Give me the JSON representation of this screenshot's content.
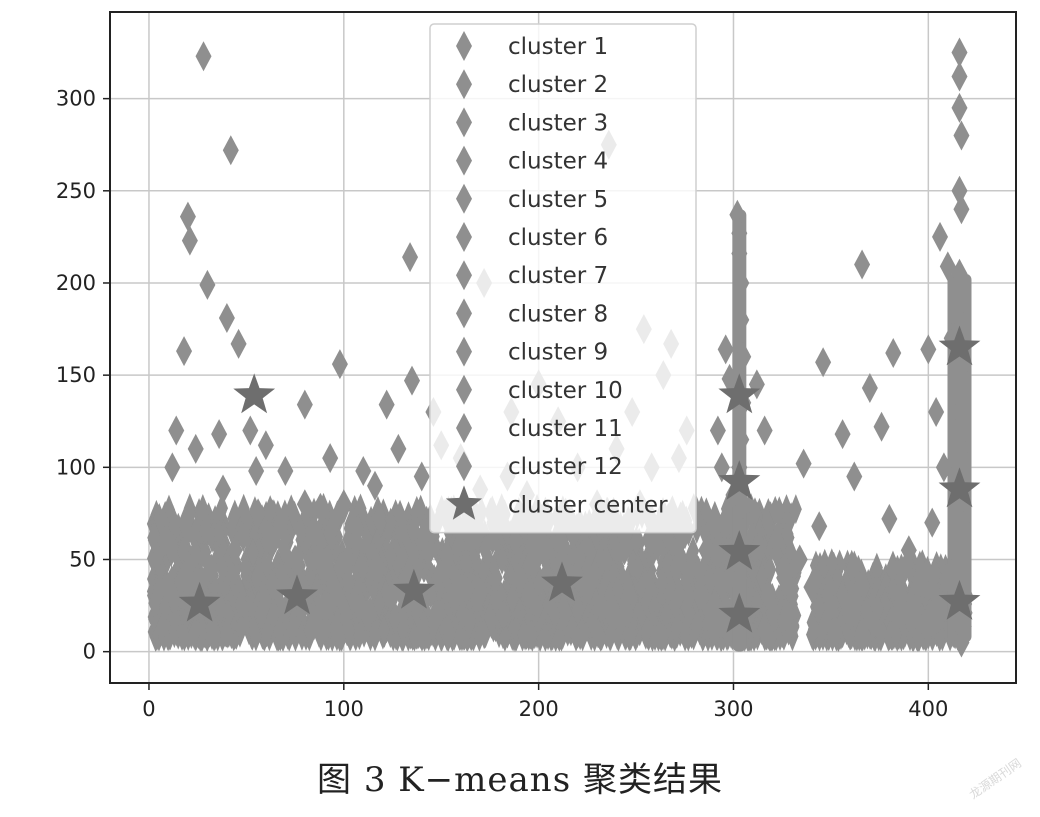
{
  "chart_data": {
    "type": "scatter",
    "title": "",
    "xlabel": "",
    "ylabel": "",
    "xlim": [
      -20,
      445
    ],
    "ylim": [
      -17,
      347
    ],
    "grid": true,
    "xticks": [
      0,
      100,
      200,
      300,
      400
    ],
    "yticks": [
      0,
      50,
      100,
      150,
      200,
      250,
      300
    ],
    "legend_position": "top-center",
    "colors": {
      "points": "#8f8f8f",
      "centers": "#6e6e6e",
      "grid": "#c8c8c8"
    },
    "series": [
      {
        "name": "cluster 1",
        "marker": "diamond",
        "x": [
          28,
          42,
          20,
          21,
          30,
          40,
          46,
          18,
          14,
          24,
          36,
          12,
          52,
          55,
          60,
          70,
          80,
          64,
          56,
          38,
          8,
          10,
          22,
          32,
          44
        ],
        "y": [
          323,
          272,
          236,
          223,
          199,
          181,
          167,
          163,
          120,
          110,
          118,
          100,
          120,
          98,
          112,
          98,
          80,
          60,
          75,
          88,
          60,
          35,
          25,
          45,
          55
        ]
      },
      {
        "name": "cluster 2",
        "marker": "diamond",
        "x": [
          80,
          98,
          93,
          110,
          116,
          122,
          128,
          100,
          88,
          84,
          75,
          106,
          118,
          132,
          95,
          90,
          112,
          124,
          86,
          102
        ],
        "y": [
          134,
          156,
          105,
          98,
          90,
          134,
          110,
          80,
          78,
          65,
          50,
          60,
          45,
          40,
          35,
          25,
          20,
          30,
          15,
          50
        ]
      },
      {
        "name": "cluster 3",
        "marker": "diamond",
        "x": [
          134,
          135,
          146,
          150,
          160,
          170,
          140,
          156,
          166,
          144,
          152,
          162,
          138,
          148,
          158,
          142
        ],
        "y": [
          214,
          147,
          130,
          112,
          105,
          88,
          95,
          75,
          60,
          55,
          45,
          35,
          25,
          20,
          30,
          65
        ]
      },
      {
        "name": "cluster 4",
        "marker": "diamond",
        "x": [
          172,
          186,
          200,
          210,
          184,
          194,
          220,
          230,
          178,
          188,
          204,
          214,
          224,
          196,
          182,
          232
        ],
        "y": [
          200,
          130,
          145,
          125,
          95,
          85,
          100,
          80,
          70,
          60,
          55,
          45,
          35,
          30,
          20,
          25
        ]
      },
      {
        "name": "cluster 5",
        "marker": "diamond",
        "x": [
          236,
          254,
          268,
          264,
          276,
          248,
          240,
          258,
          272,
          252,
          262,
          244,
          278,
          284,
          290
        ],
        "y": [
          275,
          175,
          167,
          150,
          120,
          130,
          110,
          100,
          105,
          80,
          65,
          55,
          45,
          30,
          25
        ]
      },
      {
        "name": "cluster 6",
        "marker": "diamond",
        "x": [
          302,
          303,
          303,
          304,
          304,
          305,
          305,
          304,
          303,
          305,
          304,
          303,
          305
        ],
        "y": [
          237,
          227,
          216,
          200,
          180,
          160,
          135,
          115,
          100,
          80,
          60,
          40,
          20
        ]
      },
      {
        "name": "cluster 7",
        "marker": "diamond",
        "x": [
          296,
          298,
          292,
          294,
          300,
          290,
          286,
          298,
          294
        ],
        "y": [
          164,
          148,
          120,
          100,
          85,
          70,
          55,
          40,
          15
        ]
      },
      {
        "name": "cluster 8",
        "marker": "diamond",
        "x": [
          312,
          316,
          322,
          336,
          346,
          344,
          356,
          362,
          366,
          370,
          376,
          382,
          334,
          326,
          340,
          350,
          360,
          372,
          318,
          328
        ],
        "y": [
          145,
          120,
          60,
          102,
          157,
          68,
          118,
          95,
          210,
          143,
          122,
          162,
          50,
          40,
          35,
          25,
          20,
          15,
          30,
          20
        ]
      },
      {
        "name": "cluster 9",
        "marker": "diamond",
        "x": [
          380,
          390,
          396,
          386,
          392,
          384,
          398,
          388
        ],
        "y": [
          72,
          55,
          38,
          30,
          25,
          20,
          15,
          45
        ]
      },
      {
        "name": "cluster 10",
        "marker": "diamond",
        "x": [
          400,
          406,
          410,
          412,
          404,
          408,
          402,
          410,
          406
        ],
        "y": [
          164,
          225,
          209,
          170,
          130,
          100,
          70,
          40,
          20
        ]
      },
      {
        "name": "cluster 11",
        "marker": "diamond",
        "x": [
          416,
          416,
          416,
          417,
          416,
          417,
          416,
          417,
          416
        ],
        "y": [
          325,
          312,
          295,
          280,
          250,
          240,
          205,
          190,
          175
        ]
      },
      {
        "name": "cluster 12",
        "marker": "diamond",
        "x": [
          416,
          417,
          416,
          417,
          416,
          417,
          416,
          417,
          416,
          417
        ],
        "y": [
          165,
          150,
          130,
          110,
          90,
          70,
          50,
          30,
          15,
          5
        ]
      },
      {
        "name": "cluster center",
        "marker": "star",
        "x": [
          26,
          54,
          76,
          136,
          212,
          303,
          303,
          303,
          303,
          416,
          416,
          416
        ],
        "y": [
          26,
          139,
          30,
          33,
          37,
          139,
          92,
          54,
          20,
          165,
          88,
          27
        ]
      }
    ]
  },
  "caption": "图 3 K−means 聚类结果",
  "watermark": "龙源期刊网"
}
